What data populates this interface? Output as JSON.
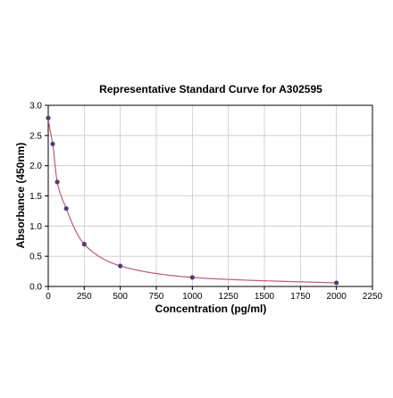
{
  "chart_data": {
    "type": "scatter",
    "title": "Representative Standard Curve for A302595",
    "xlabel": "Concentration (pg/ml)",
    "ylabel": "Absorbance (450nm)",
    "xlim": [
      0,
      2250
    ],
    "ylim": [
      0,
      3.0
    ],
    "xticks": [
      "0",
      "250",
      "500",
      "750",
      "1000",
      "1250",
      "1500",
      "1750",
      "2000",
      "2250"
    ],
    "yticks": [
      "0.0",
      "0.5",
      "1.0",
      "1.5",
      "2.0",
      "2.5",
      "3.0"
    ],
    "grid": true,
    "series": [
      {
        "x": [
          0,
          31.25,
          62.5,
          125,
          250,
          500,
          1000,
          2000
        ],
        "y": [
          2.79,
          2.36,
          1.73,
          1.29,
          0.7,
          0.34,
          0.15,
          0.06
        ]
      }
    ],
    "colors": {
      "points": "#4b3f72",
      "curve": "#c0587e",
      "grid": "#c8c8c8",
      "axis": "#000000"
    }
  }
}
